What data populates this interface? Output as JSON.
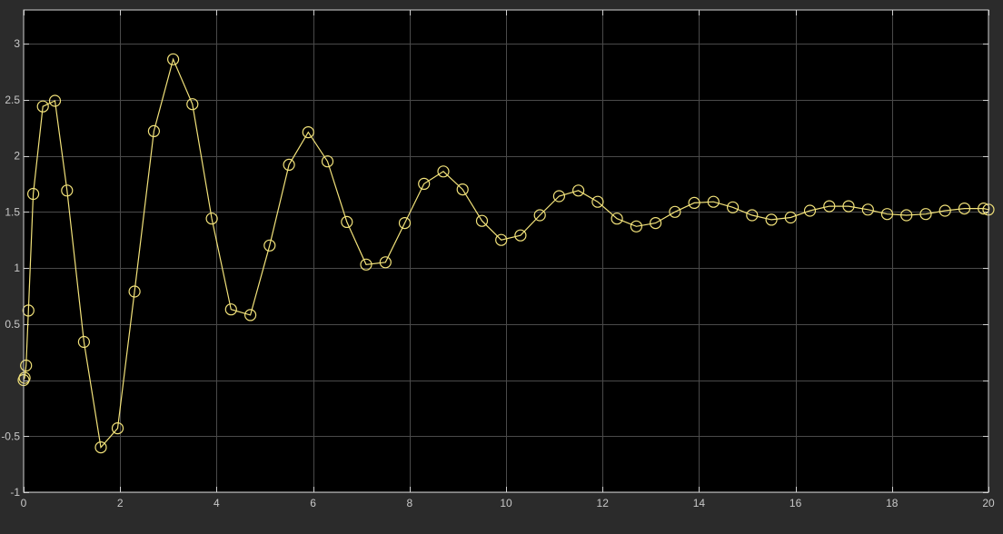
{
  "colors": {
    "background": "#2b2b2b",
    "plot_area": "#000000",
    "grid": "#4a4a4a",
    "axes": "#d0d0d0",
    "tick_text": "#c8c8c8",
    "signal": "#f2e27a"
  },
  "chart_data": {
    "type": "line",
    "title": "",
    "xlabel": "",
    "ylabel": "",
    "xlim": [
      0,
      20
    ],
    "ylim": [
      -1,
      3.3
    ],
    "xticks": [
      0,
      2,
      4,
      6,
      8,
      10,
      12,
      14,
      16,
      18,
      20
    ],
    "yticks": [
      -1,
      -0.5,
      0,
      0.5,
      1,
      1.5,
      2,
      2.5,
      3
    ],
    "xtick_labels": [
      "0",
      "2",
      "4",
      "6",
      "8",
      "10",
      "12",
      "14",
      "16",
      "18",
      "20"
    ],
    "ytick_labels": [
      "-1",
      "-0.5",
      "",
      "0.5",
      "1",
      "1.5",
      "2",
      "2.5",
      "3"
    ],
    "grid": true,
    "markers": "circle",
    "series": [
      {
        "color": "#f2e27a",
        "x": [
          0,
          0.02,
          0.05,
          0.1,
          0.2,
          0.4,
          0.65,
          0.9,
          1.25,
          1.6,
          1.95,
          2.3,
          2.7,
          3.1,
          3.5,
          3.9,
          4.3,
          4.7,
          5.1,
          5.5,
          5.9,
          6.3,
          6.7,
          7.1,
          7.5,
          7.9,
          8.3,
          8.7,
          9.1,
          9.5,
          9.9,
          10.3,
          10.7,
          11.1,
          11.5,
          11.9,
          12.3,
          12.7,
          13.1,
          13.5,
          13.9,
          14.3,
          14.7,
          15.1,
          15.5,
          15.9,
          16.3,
          16.7,
          17.1,
          17.5,
          17.9,
          18.3,
          18.7,
          19.1,
          19.5,
          19.9,
          20
        ],
        "y": [
          0,
          0.02,
          0.13,
          0.62,
          1.66,
          2.44,
          2.49,
          1.69,
          0.34,
          -0.6,
          -0.43,
          0.79,
          2.22,
          2.86,
          2.46,
          1.44,
          0.63,
          0.58,
          1.2,
          1.92,
          2.21,
          1.95,
          1.41,
          1.03,
          1.05,
          1.4,
          1.75,
          1.86,
          1.7,
          1.42,
          1.25,
          1.29,
          1.47,
          1.64,
          1.69,
          1.59,
          1.44,
          1.37,
          1.4,
          1.5,
          1.58,
          1.59,
          1.54,
          1.47,
          1.43,
          1.45,
          1.51,
          1.55,
          1.55,
          1.52,
          1.48,
          1.47,
          1.48,
          1.51,
          1.53,
          1.53,
          1.52
        ]
      }
    ]
  }
}
